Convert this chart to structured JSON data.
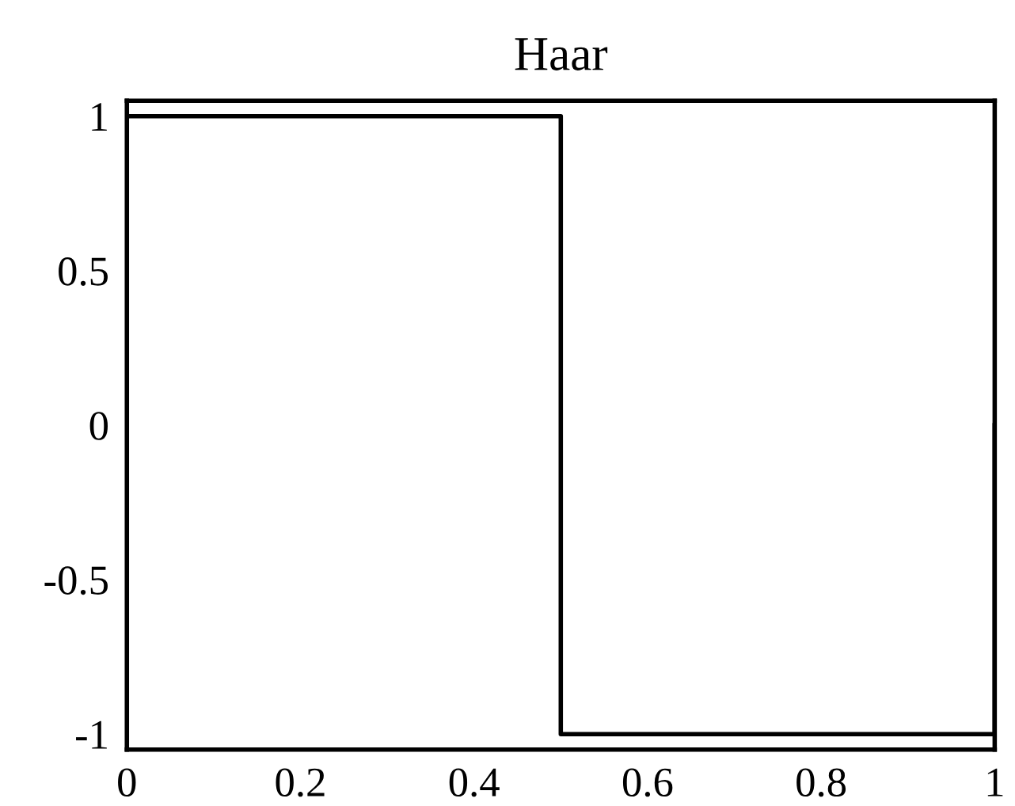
{
  "chart_data": {
    "type": "line",
    "title": "Haar",
    "x": [
      0,
      0,
      0.5,
      0.5,
      1,
      1
    ],
    "series": [
      {
        "color": "#000000",
        "values": [
          0,
          1,
          1,
          -1,
          -1,
          0
        ]
      }
    ],
    "xlim": [
      0,
      1
    ],
    "ylim": [
      -1.05,
      1.05
    ],
    "xticks": [
      0,
      0.2,
      0.4,
      0.6,
      0.8,
      1
    ],
    "yticks": [
      -1,
      -0.5,
      0,
      0.5,
      1
    ],
    "grid": false,
    "legend": false
  }
}
